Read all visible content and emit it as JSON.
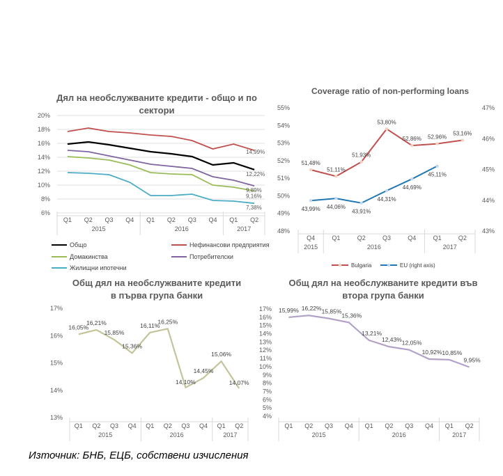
{
  "source_note": "Източник: БНБ, ЕЦБ, собствени изчисления",
  "colors": {
    "total": "#000000",
    "corporate": "#c0504d",
    "households": "#9bbb59",
    "consumer": "#8064a2",
    "mortgage": "#4bacc6",
    "bulgaria": "#c0504d",
    "eu": "#1f77b4",
    "group1": "#c4c49a",
    "group2": "#b3a2c7",
    "grid": "#d9d9d9"
  },
  "chart_data": [
    {
      "id": "sectors",
      "type": "line",
      "title_lines": [
        "Дял на необслужваните кредити - общо и по",
        "сектори"
      ],
      "categories": [
        "Q1",
        "Q2",
        "Q3",
        "Q4",
        "Q1",
        "Q2",
        "Q3",
        "Q4",
        "Q1",
        "Q2"
      ],
      "year_groups": [
        {
          "label": "2015",
          "span": 4
        },
        {
          "label": "2016",
          "span": 4
        },
        {
          "label": "2017",
          "span": 2
        }
      ],
      "y_ticks": [
        "6%",
        "8%",
        "10%",
        "12%",
        "14%",
        "16%",
        "18%",
        "20%"
      ],
      "ylim": [
        6,
        20
      ],
      "series": [
        {
          "name": "Общо",
          "color_key": "total",
          "values": [
            15.9,
            16.2,
            15.8,
            15.3,
            14.8,
            14.5,
            14.1,
            12.9,
            13.2,
            12.22
          ],
          "end_label": "12,22%"
        },
        {
          "name": "Нефинансови предприятия",
          "color_key": "corporate",
          "values": [
            17.7,
            18.2,
            17.7,
            17.5,
            17.2,
            17.0,
            16.4,
            15.2,
            15.9,
            14.99
          ],
          "end_label": "14,99%"
        },
        {
          "name": "Домакинства",
          "color_key": "households",
          "values": [
            14.1,
            13.9,
            13.6,
            12.9,
            11.8,
            11.6,
            11.5,
            10.0,
            9.7,
            9.16
          ],
          "end_label": "9,16%"
        },
        {
          "name": "Потребителски",
          "color_key": "consumer",
          "values": [
            15.0,
            14.8,
            14.2,
            13.6,
            13.0,
            12.7,
            12.4,
            11.2,
            10.7,
            9.89
          ],
          "end_label": "9,89%"
        },
        {
          "name": "Жилищни ипотечни",
          "color_key": "mortgage",
          "values": [
            11.8,
            11.7,
            11.5,
            10.4,
            8.5,
            8.5,
            8.7,
            7.8,
            7.7,
            7.38
          ],
          "end_label": "7,38%"
        }
      ]
    },
    {
      "id": "coverage",
      "type": "line",
      "title_lines": [
        "Coverage ratio of non-performing loans"
      ],
      "categories": [
        "Q4",
        "Q1",
        "Q2",
        "Q3",
        "Q4",
        "Q1",
        "Q2"
      ],
      "year_groups": [
        {
          "label": "2015",
          "span": 1
        },
        {
          "label": "2016",
          "span": 4
        },
        {
          "label": "2017",
          "span": 2
        }
      ],
      "y_ticks": [
        "48%",
        "49%",
        "50%",
        "51%",
        "52%",
        "53%",
        "54%",
        "55%"
      ],
      "ylim": [
        48,
        55
      ],
      "y2_ticks": [
        "43%",
        "44%",
        "45%",
        "46%",
        "47%"
      ],
      "y2lim": [
        43,
        47
      ],
      "series": [
        {
          "name": "Bulgaria",
          "color_key": "bulgaria",
          "axis": "left",
          "values": [
            51.48,
            51.11,
            51.93,
            53.8,
            52.86,
            52.96,
            53.16
          ],
          "labels": [
            "51,48%",
            "51,11%",
            "51,93%",
            "53,80%",
            "52,86%",
            "52,96%",
            "53,16%"
          ]
        },
        {
          "name": "EU (right axis)",
          "color_key": "eu",
          "axis": "right",
          "values": [
            43.99,
            44.06,
            43.91,
            44.31,
            44.69,
            45.11,
            null
          ],
          "labels": [
            "43,99%",
            "44,06%",
            "43,91%",
            "44,31%",
            "44,69%",
            "45,11%",
            ""
          ]
        }
      ]
    },
    {
      "id": "group1",
      "type": "line",
      "title_lines": [
        "Общ дял на необслужваните кредити",
        "в първа група банки"
      ],
      "categories": [
        "Q1",
        "Q2",
        "Q3",
        "Q4",
        "Q1",
        "Q2",
        "Q3",
        "Q4",
        "Q1",
        "Q2"
      ],
      "year_groups": [
        {
          "label": "2015",
          "span": 4
        },
        {
          "label": "2016",
          "span": 4
        },
        {
          "label": "2017",
          "span": 2
        }
      ],
      "y_ticks": [
        "13%",
        "14%",
        "15%",
        "16%",
        "17%"
      ],
      "ylim": [
        13,
        17
      ],
      "series": [
        {
          "name": "Първа група",
          "color_key": "group1",
          "values": [
            16.05,
            16.21,
            15.85,
            15.36,
            16.11,
            16.25,
            14.1,
            14.45,
            15.06,
            14.07
          ],
          "labels": [
            "16,05%",
            "16,21%",
            "15,85%",
            "15,36%",
            "16,11%",
            "16,25%",
            "14,10%",
            "14,45%",
            "15,06%",
            "14,07%"
          ]
        }
      ]
    },
    {
      "id": "group2",
      "type": "line",
      "title_lines": [
        "Общ дял на необслужваните кредити във",
        "втора група банки"
      ],
      "categories": [
        "Q1",
        "Q2",
        "Q3",
        "Q4",
        "Q1",
        "Q2",
        "Q3",
        "Q4",
        "Q1",
        "Q2"
      ],
      "year_groups": [
        {
          "label": "2015",
          "span": 4
        },
        {
          "label": "2016",
          "span": 4
        },
        {
          "label": "2017",
          "span": 2
        }
      ],
      "y_ticks": [
        "4%",
        "5%",
        "6%",
        "7%",
        "8%",
        "9%",
        "10%",
        "11%",
        "12%",
        "13%",
        "14%",
        "15%",
        "16%",
        "17%"
      ],
      "ylim": [
        4,
        17
      ],
      "series": [
        {
          "name": "Втора група",
          "color_key": "group2",
          "values": [
            15.99,
            16.22,
            15.85,
            15.36,
            13.21,
            12.43,
            12.05,
            10.92,
            10.85,
            9.95
          ],
          "labels": [
            "15,99%",
            "16,22%",
            "15,85%",
            "15,36%",
            "13,21%",
            "12,43%",
            "12,05%",
            "10,92%",
            "10,85%",
            "9,95%"
          ]
        }
      ]
    }
  ]
}
